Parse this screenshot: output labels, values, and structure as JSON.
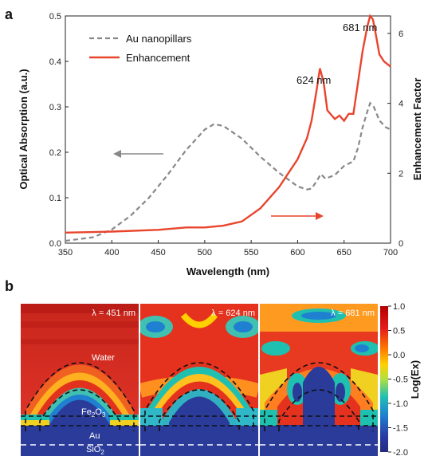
{
  "panels": {
    "a": "a",
    "b": "b"
  },
  "chart_data": {
    "type": "line",
    "xlabel": "Wavelength (nm)",
    "ylabel": "Optical Absorption (a.u.)",
    "y2label": "Enhancement Factor",
    "xlim": [
      350,
      700
    ],
    "ylim": [
      0,
      0.5
    ],
    "y2lim": [
      0,
      6.5
    ],
    "xticks": [
      "350",
      "400",
      "450",
      "500",
      "550",
      "600",
      "650",
      "700"
    ],
    "yticks": [
      "0.0",
      "0.1",
      "0.2",
      "0.3",
      "0.4",
      "0.5"
    ],
    "y2ticks": [
      "0",
      "2",
      "4",
      "6"
    ],
    "legend_position": "top-left",
    "series": [
      {
        "name": "Au nanopillars",
        "axis": "left",
        "color": "#888888",
        "style": "dashed",
        "x": [
          350,
          380,
          400,
          420,
          440,
          460,
          480,
          500,
          510,
          520,
          540,
          560,
          580,
          600,
          610,
          615,
          620,
          625,
          630,
          640,
          650,
          660,
          665,
          670,
          675,
          678,
          682,
          688,
          695,
          700
        ],
        "y": [
          0.005,
          0.013,
          0.03,
          0.06,
          0.1,
          0.15,
          0.205,
          0.25,
          0.262,
          0.258,
          0.23,
          0.19,
          0.155,
          0.125,
          0.118,
          0.12,
          0.135,
          0.152,
          0.142,
          0.15,
          0.17,
          0.18,
          0.21,
          0.255,
          0.29,
          0.308,
          0.3,
          0.27,
          0.255,
          0.25
        ]
      },
      {
        "name": "Enhancement",
        "axis": "right",
        "color": "#e8452d",
        "style": "solid",
        "x": [
          350,
          400,
          450,
          480,
          500,
          520,
          540,
          560,
          580,
          600,
          610,
          615,
          620,
          624,
          628,
          632,
          640,
          645,
          650,
          655,
          660,
          665,
          670,
          675,
          678,
          681,
          684,
          688,
          693,
          700
        ],
        "y": [
          0.3,
          0.33,
          0.38,
          0.45,
          0.45,
          0.5,
          0.62,
          1.0,
          1.6,
          2.4,
          3.0,
          3.5,
          4.3,
          5.0,
          4.6,
          3.8,
          3.55,
          3.65,
          3.5,
          3.7,
          3.7,
          4.6,
          5.5,
          6.2,
          6.5,
          6.4,
          6.0,
          5.4,
          5.2,
          5.05
        ]
      }
    ],
    "annotations": [
      "624 nm",
      "681 nm"
    ]
  },
  "maps": {
    "colorbar": {
      "label": "Log(Ex)",
      "ticks": [
        "1.0",
        "0.5",
        "0.0",
        "-0.5",
        "-1.0",
        "-1.5",
        "-2.0"
      ],
      "range": [
        -2.0,
        1.0
      ]
    },
    "items": [
      {
        "lambda": "λ = 451 nm"
      },
      {
        "lambda": "λ = 624 nm"
      },
      {
        "lambda": "λ = 681 nm"
      }
    ],
    "labels": {
      "water": "Water",
      "fe2o3_main": "Fe",
      "fe2o3_sub": "2",
      "fe2o3_o": "O",
      "fe2o3_sub2": "3",
      "au": "Au",
      "sio2_main": "SiO",
      "sio2_sub": "2"
    }
  }
}
